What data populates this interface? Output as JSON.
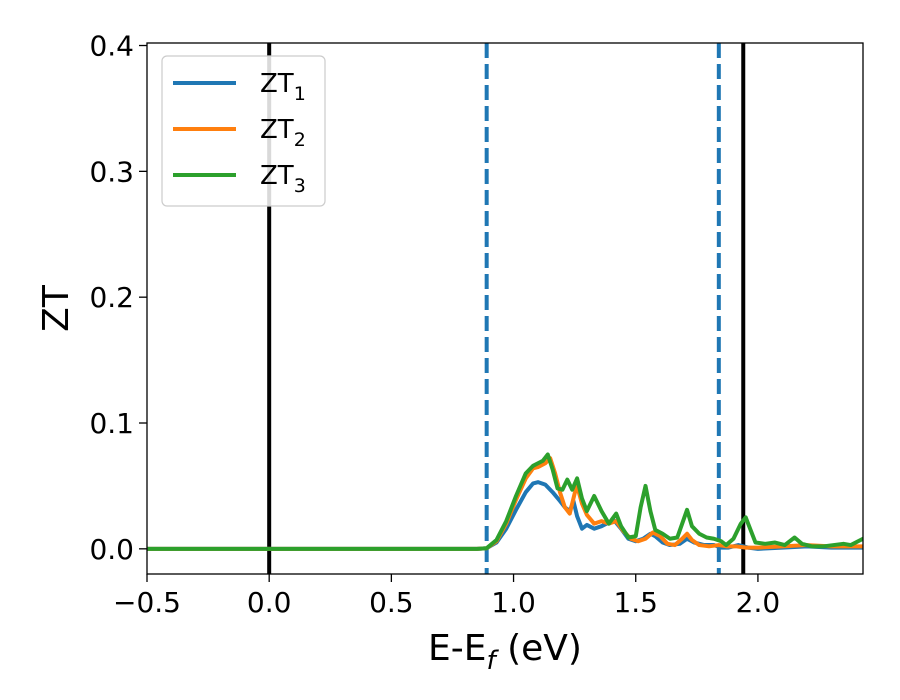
{
  "chart_data": {
    "type": "line",
    "xlabel": "E-E",
    "xlabel_sub": "f",
    "xlabel_unit": " (eV)",
    "ylabel": "ZT",
    "xlim": [
      -0.5,
      2.43
    ],
    "ylim": [
      -0.02,
      0.402
    ],
    "xticks": [
      -0.5,
      0.0,
      0.5,
      1.0,
      1.5,
      2.0
    ],
    "xtick_labels": [
      "−0.5",
      "0.0",
      "0.5",
      "1.0",
      "1.5",
      "2.0"
    ],
    "yticks": [
      0.0,
      0.1,
      0.2,
      0.3,
      0.4
    ],
    "ytick_labels": [
      "0.0",
      "0.1",
      "0.2",
      "0.3",
      "0.4"
    ],
    "grid": false,
    "legend_position": "upper-left",
    "vlines": [
      {
        "x": 0.0,
        "style": "solid",
        "color": "#000000"
      },
      {
        "x": 1.94,
        "style": "solid",
        "color": "#000000"
      },
      {
        "x": 0.89,
        "style": "dashed",
        "color": "#1f77b4"
      },
      {
        "x": 1.84,
        "style": "dashed",
        "color": "#1f77b4"
      }
    ],
    "series": [
      {
        "name": "ZT",
        "sub": "1",
        "color": "#1f77b4",
        "points": [
          [
            -0.5,
            0
          ],
          [
            0.85,
            0
          ],
          [
            0.89,
            0.0005
          ],
          [
            0.93,
            0.005
          ],
          [
            0.97,
            0.016
          ],
          [
            1.01,
            0.031
          ],
          [
            1.05,
            0.045
          ],
          [
            1.08,
            0.052
          ],
          [
            1.1,
            0.053
          ],
          [
            1.13,
            0.051
          ],
          [
            1.16,
            0.045
          ],
          [
            1.19,
            0.038
          ],
          [
            1.21,
            0.033
          ],
          [
            1.23,
            0.03
          ],
          [
            1.245,
            0.038
          ],
          [
            1.26,
            0.026
          ],
          [
            1.28,
            0.016
          ],
          [
            1.3,
            0.019
          ],
          [
            1.33,
            0.016
          ],
          [
            1.36,
            0.018
          ],
          [
            1.39,
            0.021
          ],
          [
            1.41,
            0.023
          ],
          [
            1.44,
            0.016
          ],
          [
            1.47,
            0.008
          ],
          [
            1.5,
            0.006
          ],
          [
            1.53,
            0.008
          ],
          [
            1.56,
            0.012
          ],
          [
            1.58,
            0.01
          ],
          [
            1.61,
            0.005
          ],
          [
            1.64,
            0.003
          ],
          [
            1.68,
            0.004
          ],
          [
            1.71,
            0.008
          ],
          [
            1.74,
            0.005
          ],
          [
            1.78,
            0.003
          ],
          [
            1.82,
            0.003
          ],
          [
            1.85,
            0.001
          ],
          [
            1.88,
            0.001
          ],
          [
            1.92,
            0.003
          ],
          [
            1.96,
            0.001
          ],
          [
            2.0,
            0
          ],
          [
            2.1,
            0.001
          ],
          [
            2.2,
            0.002
          ],
          [
            2.3,
            0.001
          ],
          [
            2.43,
            0.001
          ]
        ]
      },
      {
        "name": "ZT",
        "sub": "2",
        "color": "#ff7f0e",
        "points": [
          [
            -0.5,
            0
          ],
          [
            0.85,
            0
          ],
          [
            0.89,
            0.0005
          ],
          [
            0.93,
            0.006
          ],
          [
            0.97,
            0.02
          ],
          [
            1.01,
            0.039
          ],
          [
            1.05,
            0.056
          ],
          [
            1.08,
            0.064
          ],
          [
            1.1,
            0.065
          ],
          [
            1.13,
            0.068
          ],
          [
            1.15,
            0.072
          ],
          [
            1.17,
            0.06
          ],
          [
            1.19,
            0.045
          ],
          [
            1.21,
            0.033
          ],
          [
            1.23,
            0.028
          ],
          [
            1.25,
            0.044
          ],
          [
            1.26,
            0.05
          ],
          [
            1.28,
            0.036
          ],
          [
            1.3,
            0.027
          ],
          [
            1.33,
            0.02
          ],
          [
            1.36,
            0.022
          ],
          [
            1.39,
            0.02
          ],
          [
            1.42,
            0.022
          ],
          [
            1.45,
            0.014
          ],
          [
            1.48,
            0.008
          ],
          [
            1.51,
            0.006
          ],
          [
            1.54,
            0.008
          ],
          [
            1.57,
            0.013
          ],
          [
            1.6,
            0.01
          ],
          [
            1.63,
            0.004
          ],
          [
            1.66,
            0.003
          ],
          [
            1.69,
            0.008
          ],
          [
            1.71,
            0.012
          ],
          [
            1.73,
            0.007
          ],
          [
            1.76,
            0.003
          ],
          [
            1.8,
            0.002
          ],
          [
            1.84,
            0.003
          ],
          [
            1.87,
            0.002
          ],
          [
            1.91,
            0.002
          ],
          [
            1.95,
            0.001
          ],
          [
            2.0,
            0.001
          ],
          [
            2.1,
            0.002
          ],
          [
            2.2,
            0.003
          ],
          [
            2.3,
            0.002
          ],
          [
            2.43,
            0.002
          ]
        ]
      },
      {
        "name": "ZT",
        "sub": "3",
        "color": "#2ca02c",
        "points": [
          [
            -0.5,
            0
          ],
          [
            0.85,
            0
          ],
          [
            0.89,
            0.0005
          ],
          [
            0.93,
            0.007
          ],
          [
            0.97,
            0.022
          ],
          [
            1.01,
            0.042
          ],
          [
            1.05,
            0.06
          ],
          [
            1.08,
            0.066
          ],
          [
            1.1,
            0.068
          ],
          [
            1.12,
            0.07
          ],
          [
            1.14,
            0.075
          ],
          [
            1.16,
            0.063
          ],
          [
            1.18,
            0.048
          ],
          [
            1.2,
            0.047
          ],
          [
            1.22,
            0.055
          ],
          [
            1.24,
            0.047
          ],
          [
            1.26,
            0.056
          ],
          [
            1.28,
            0.04
          ],
          [
            1.3,
            0.03
          ],
          [
            1.33,
            0.042
          ],
          [
            1.36,
            0.03
          ],
          [
            1.39,
            0.02
          ],
          [
            1.42,
            0.028
          ],
          [
            1.44,
            0.018
          ],
          [
            1.47,
            0.009
          ],
          [
            1.5,
            0.01
          ],
          [
            1.52,
            0.033
          ],
          [
            1.54,
            0.05
          ],
          [
            1.56,
            0.03
          ],
          [
            1.58,
            0.015
          ],
          [
            1.61,
            0.012
          ],
          [
            1.64,
            0.008
          ],
          [
            1.67,
            0.009
          ],
          [
            1.69,
            0.02
          ],
          [
            1.71,
            0.031
          ],
          [
            1.73,
            0.018
          ],
          [
            1.76,
            0.012
          ],
          [
            1.79,
            0.009
          ],
          [
            1.82,
            0.008
          ],
          [
            1.85,
            0.006
          ],
          [
            1.87,
            0.003
          ],
          [
            1.9,
            0.008
          ],
          [
            1.93,
            0.02
          ],
          [
            1.95,
            0.025
          ],
          [
            1.97,
            0.015
          ],
          [
            1.99,
            0.005
          ],
          [
            2.03,
            0.004
          ],
          [
            2.07,
            0.005
          ],
          [
            2.11,
            0.003
          ],
          [
            2.15,
            0.009
          ],
          [
            2.18,
            0.004
          ],
          [
            2.22,
            0.002
          ],
          [
            2.27,
            0.002
          ],
          [
            2.31,
            0.003
          ],
          [
            2.35,
            0.004
          ],
          [
            2.38,
            0.003
          ],
          [
            2.41,
            0.006
          ],
          [
            2.43,
            0.008
          ]
        ]
      }
    ]
  }
}
